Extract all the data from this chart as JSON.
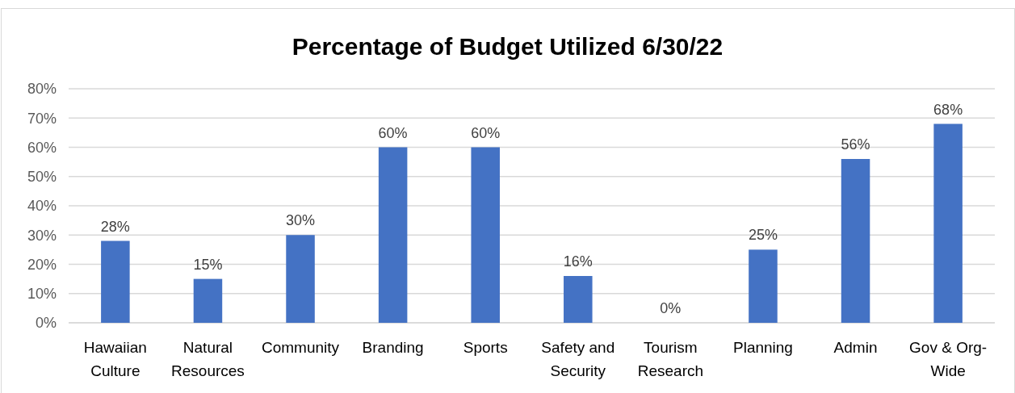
{
  "chart_data": {
    "type": "bar",
    "title": "Percentage of Budget Utilized 6/30/22",
    "categories": [
      "Hawaiian Culture",
      "Natural Resources",
      "Community",
      "Branding",
      "Sports",
      "Safety and Security",
      "Tourism Research",
      "Planning",
      "Admin",
      "Gov & Org-Wide"
    ],
    "values": [
      28,
      15,
      30,
      60,
      60,
      16,
      0,
      25,
      56,
      68
    ],
    "value_labels": [
      "28%",
      "15%",
      "30%",
      "60%",
      "60%",
      "16%",
      "0%",
      "25%",
      "56%",
      "68%"
    ],
    "color": "#4472c4",
    "ylim": [
      0,
      80
    ],
    "yticks": [
      {
        "value": 0,
        "label": "0%"
      },
      {
        "value": 10,
        "label": "10%"
      },
      {
        "value": 20,
        "label": "20%"
      },
      {
        "value": 30,
        "label": "30%"
      },
      {
        "value": 40,
        "label": "40%"
      },
      {
        "value": 50,
        "label": "50%"
      },
      {
        "value": 60,
        "label": "60%"
      },
      {
        "value": 70,
        "label": "70%"
      },
      {
        "value": 80,
        "label": "80%"
      }
    ],
    "grid": "y"
  }
}
